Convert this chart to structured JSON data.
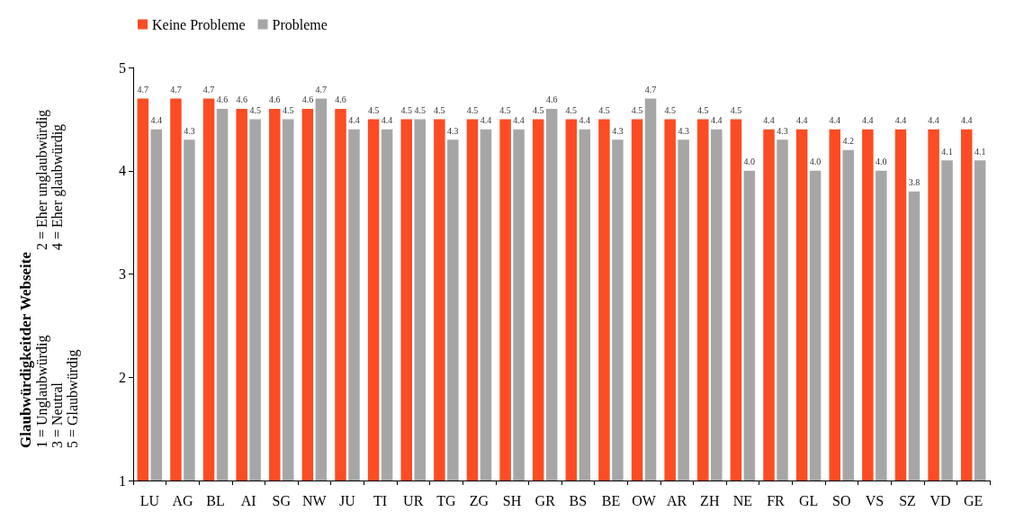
{
  "chart_data": {
    "type": "bar",
    "annotations": [
      "Glaubwürdigkeitder Webseite",
      "1 = Unglaubwürdig",
      "2 = Eher unglaubwürdig",
      "3 = Neutral",
      "4 = Eher glaubwürdig",
      "5 = Glaubwürdig"
    ],
    "categories": [
      "LU",
      "AG",
      "BL",
      "AI",
      "SG",
      "NW",
      "JU",
      "TI",
      "UR",
      "TG",
      "ZG",
      "SH",
      "GR",
      "BS",
      "BE",
      "OW",
      "AR",
      "ZH",
      "NE",
      "FR",
      "GL",
      "SO",
      "VS",
      "SZ",
      "VD",
      "GE"
    ],
    "series": [
      {
        "name": "Keine Probleme",
        "color": "#fc4c23",
        "values": [
          4.7,
          4.7,
          4.7,
          4.6,
          4.6,
          4.6,
          4.6,
          4.5,
          4.5,
          4.5,
          4.5,
          4.5,
          4.5,
          4.5,
          4.5,
          4.5,
          4.5,
          4.5,
          4.5,
          4.4,
          4.4,
          4.4,
          4.4,
          4.4,
          4.4,
          4.4
        ],
        "value_labels": [
          "4.7",
          "4.7",
          "4.7",
          "4.6",
          "4.6",
          "4.6",
          "4.6",
          "4.5",
          "4.5",
          "4.5",
          "4.5",
          "4.5",
          "4.5",
          "4.5",
          "4.5",
          "4.5",
          "4.5",
          "4.5",
          "4.5",
          "4.4",
          "4.4",
          "4.4",
          "4.4",
          "4.4",
          "4.4",
          "4.4"
        ]
      },
      {
        "name": "Probleme",
        "color": "#a6a6a6",
        "values": [
          4.4,
          4.3,
          4.6,
          4.5,
          4.5,
          4.7,
          4.4,
          4.4,
          4.5,
          4.3,
          4.4,
          4.4,
          4.6,
          4.4,
          4.3,
          4.7,
          4.3,
          4.4,
          4.0,
          4.3,
          4.0,
          4.2,
          4.0,
          3.8,
          4.1,
          4.1
        ],
        "value_labels": [
          "4.4",
          "4.3",
          "4.6",
          "4.5",
          "4.5",
          "4.7",
          "4.4",
          "4.4",
          "4.5",
          "4.3",
          "4.4",
          "4.4",
          "4.6",
          "4.4",
          "4.3",
          "4.7",
          "4.3",
          "4.4",
          "4.0",
          "4.3",
          "4.0",
          "4.2",
          "4.0",
          "3.8",
          "4.1",
          "4.1"
        ]
      }
    ],
    "ylim": [
      1,
      5
    ],
    "yticks": [
      1,
      2,
      3,
      4,
      5
    ],
    "legend": "top left",
    "grid": false
  }
}
